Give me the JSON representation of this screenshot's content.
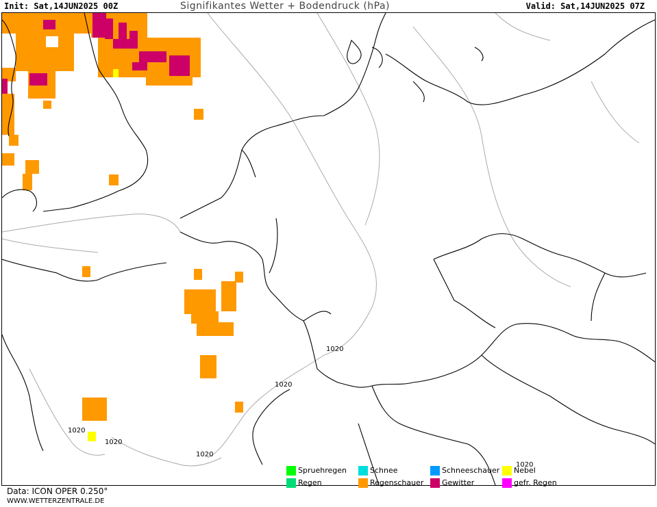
{
  "header": {
    "init": "Init: Sat,14JUN2025 00Z",
    "title": "Signifikantes Wetter + Bodendruck (hPa)",
    "valid": "Valid: Sat,14JUN2025 07Z"
  },
  "map": {
    "isobar_labels": [
      "1020",
      "1020",
      "1020",
      "1020",
      "1020",
      "1020"
    ],
    "colors": {
      "regenschauer": "#ff9900",
      "gewitter": "#cc0066",
      "nebel": "#ffff00",
      "coast": "#000000",
      "isobar": "#aaaaaa"
    }
  },
  "legend": {
    "items": [
      {
        "label": "Spruehregen",
        "color": "#00ff00"
      },
      {
        "label": "Schnee",
        "color": "#00dddd"
      },
      {
        "label": "Schneeschauer",
        "color": "#0099ff"
      },
      {
        "label": "Nebel",
        "color": "#ffff00"
      },
      {
        "label": "Regen",
        "color": "#00dd77"
      },
      {
        "label": "Regenschauer",
        "color": "#ff9900"
      },
      {
        "label": "Gewitter",
        "color": "#cc0066"
      },
      {
        "label": "gefr. Regen",
        "color": "#ff00ff"
      }
    ]
  },
  "footer": {
    "data": "Data: ICON OPER 0.250°",
    "url": "WWW.WETTERZENTRALE.DE"
  }
}
